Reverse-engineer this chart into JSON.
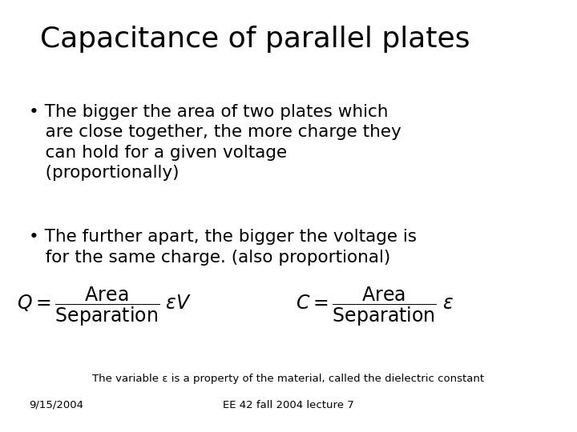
{
  "title": "Capacitance of parallel plates",
  "title_fontsize": 26,
  "bullet1_line1": "The bigger the area of two plates which",
  "bullet1_line2": "are close together, the more charge they",
  "bullet1_line3": "can hold for a given voltage",
  "bullet1_line4": "(proportionally)",
  "bullet2_line1": "The further apart, the bigger the voltage is",
  "bullet2_line2": "for the same charge. (also proportional)",
  "bullet_fontsize": 15.5,
  "formula_note": "The variable ε is a property of the material, called the dielectric constant",
  "footer_left": "9/15/2004",
  "footer_center": "EE 42 fall 2004 lecture 7",
  "footer_fontsize": 9.5,
  "note_fontsize": 9.5,
  "formula_fontsize": 17,
  "bg_color": "#ffffff",
  "text_color": "#000000"
}
